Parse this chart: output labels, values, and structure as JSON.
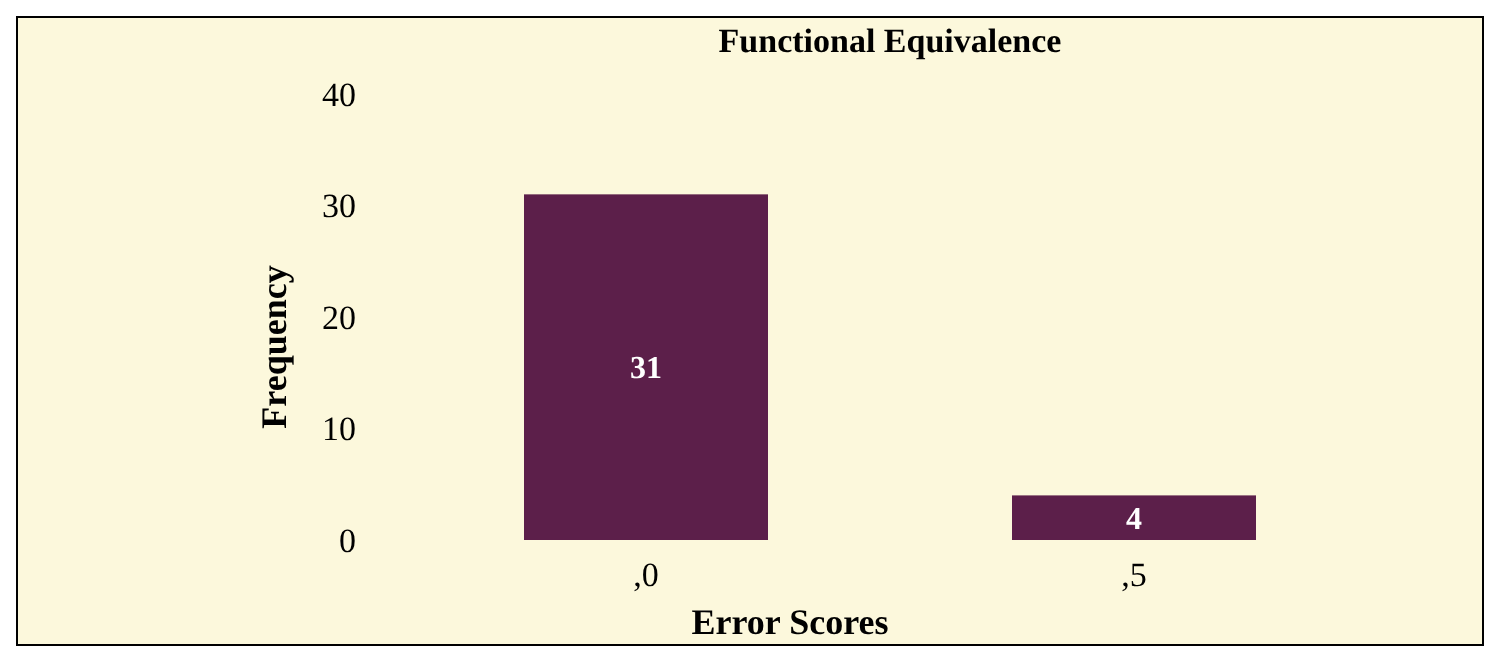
{
  "chart_data": {
    "type": "bar",
    "title": "Functional Equivalence",
    "xlabel": "Error Scores",
    "ylabel": "Frequency",
    "categories": [
      ",0",
      ",5"
    ],
    "values": [
      31,
      4
    ],
    "color": "#5c1f4a",
    "ylim": [
      0,
      40
    ],
    "yticks": [
      0,
      10,
      20,
      30,
      40
    ],
    "grid": false,
    "data_labels": true
  }
}
